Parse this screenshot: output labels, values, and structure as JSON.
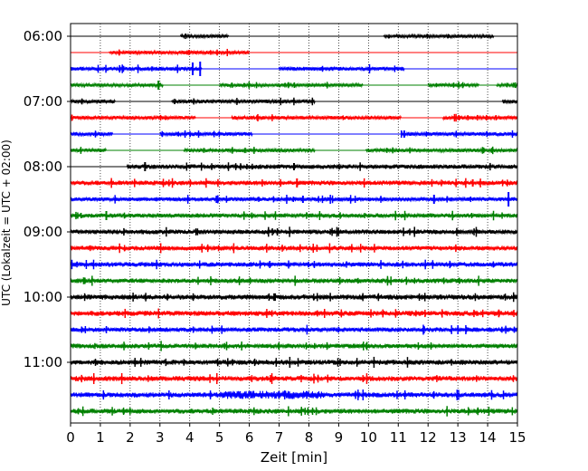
{
  "chart_data": {
    "type": "line",
    "title": "",
    "xlabel": "Zeit  [min]",
    "ylabel": "UTC (Lokalzeit = UTC + 02:00)",
    "xlim": [
      0,
      15
    ],
    "x_ticks": [
      "0",
      "1",
      "2",
      "3",
      "4",
      "5",
      "6",
      "7",
      "8",
      "9",
      "10",
      "11",
      "12",
      "13",
      "14",
      "15"
    ],
    "y_ticks": [
      "06:00",
      "07:00",
      "08:00",
      "09:00",
      "10:00",
      "11:00"
    ],
    "grid": "vertical dotted",
    "trace_interval_min": 15,
    "color_cycle": [
      "#000000",
      "#ff0000",
      "#0000ff",
      "#008000"
    ],
    "rows": [
      {
        "label": "06:00",
        "color": "#000000",
        "amp": 1.8,
        "gaps": [
          [
            0,
            3.7
          ],
          [
            5.3,
            10.5
          ],
          [
            14.2,
            15
          ]
        ]
      },
      {
        "label": "06:15",
        "color": "#ff0000",
        "amp": 2.0,
        "gaps": [
          [
            0,
            1.3
          ],
          [
            6,
            15
          ]
        ]
      },
      {
        "label": "06:30",
        "color": "#0000ff",
        "amp": 2.3,
        "gaps": [
          [
            4.4,
            7.0
          ],
          [
            11.2,
            15
          ]
        ],
        "spikes": [
          {
            "x": 4.1,
            "a": 7
          },
          {
            "x": 4.35,
            "a": 8
          }
        ]
      },
      {
        "label": "06:45",
        "color": "#008000",
        "amp": 1.8,
        "gaps": [
          [
            3.1,
            5.0
          ],
          [
            9.8,
            12.0
          ],
          [
            13.7,
            14.3
          ]
        ],
        "spikes": [
          {
            "x": 2.95,
            "a": 5
          }
        ]
      },
      {
        "label": "07:00",
        "color": "#000000",
        "amp": 2.2,
        "gaps": [
          [
            1.5,
            3.4
          ],
          [
            8.2,
            14.5
          ]
        ]
      },
      {
        "label": "07:15",
        "color": "#ff0000",
        "amp": 2.1,
        "gaps": [
          [
            4.2,
            5.4
          ],
          [
            11.1,
            12.5
          ]
        ]
      },
      {
        "label": "07:30",
        "color": "#0000ff",
        "amp": 2.2,
        "gaps": [
          [
            1.4,
            3.0
          ],
          [
            6.1,
            11.1
          ]
        ],
        "spikes": [
          {
            "x": 11.2,
            "a": 4
          }
        ]
      },
      {
        "label": "07:45",
        "color": "#008000",
        "amp": 2.0,
        "gaps": [
          [
            1.2,
            3.8
          ],
          [
            8.2,
            9.9
          ]
        ]
      },
      {
        "label": "08:00",
        "color": "#000000",
        "amp": 2.5,
        "gaps": [
          [
            0,
            1.9
          ]
        ],
        "spikes": [
          {
            "x": 2.5,
            "a": 5
          },
          {
            "x": 7.5,
            "a": 4
          }
        ]
      },
      {
        "label": "08:15",
        "color": "#ff0000",
        "amp": 2.6,
        "gaps": [],
        "spikes": [
          {
            "x": 7.6,
            "a": 5
          },
          {
            "x": 13.5,
            "a": 4
          }
        ]
      },
      {
        "label": "08:30",
        "color": "#0000ff",
        "amp": 2.3,
        "gaps": [],
        "spikes": [
          {
            "x": 4.9,
            "a": 4
          },
          {
            "x": 7.8,
            "a": 4
          },
          {
            "x": 12.2,
            "a": 5
          },
          {
            "x": 14.7,
            "a": 8
          }
        ]
      },
      {
        "label": "08:45",
        "color": "#008000",
        "amp": 2.4,
        "gaps": [],
        "spikes": [
          {
            "x": 1.2,
            "a": 5
          }
        ]
      },
      {
        "label": "09:00",
        "color": "#000000",
        "amp": 2.6,
        "gaps": []
      },
      {
        "label": "09:15",
        "color": "#ff0000",
        "amp": 2.6,
        "gaps": []
      },
      {
        "label": "09:30",
        "color": "#0000ff",
        "amp": 2.6,
        "gaps": []
      },
      {
        "label": "09:45",
        "color": "#008000",
        "amp": 2.6,
        "gaps": []
      },
      {
        "label": "10:00",
        "color": "#000000",
        "amp": 2.8,
        "gaps": []
      },
      {
        "label": "10:15",
        "color": "#ff0000",
        "amp": 2.8,
        "gaps": []
      },
      {
        "label": "10:30",
        "color": "#0000ff",
        "amp": 2.6,
        "gaps": []
      },
      {
        "label": "10:45",
        "color": "#008000",
        "amp": 2.6,
        "gaps": []
      },
      {
        "label": "11:00",
        "color": "#000000",
        "amp": 2.8,
        "gaps": []
      },
      {
        "label": "11:15",
        "color": "#ff0000",
        "amp": 2.8,
        "gaps": []
      },
      {
        "label": "11:30",
        "color": "#0000ff",
        "amp": 2.8,
        "gaps": [],
        "burst": [
          5,
          8.5
        ]
      },
      {
        "label": "11:45",
        "color": "#008000",
        "amp": 2.8,
        "gaps": []
      }
    ]
  }
}
